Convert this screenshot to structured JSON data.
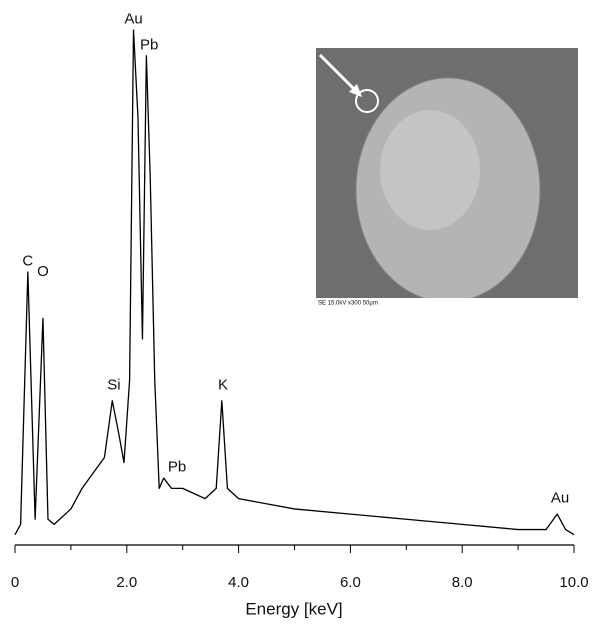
{
  "chart_data": {
    "type": "line",
    "x_label": "Energy [keV]",
    "x": [
      0,
      0.1,
      0.23,
      0.36,
      0.5,
      0.59,
      0.7,
      1.0,
      1.2,
      1.4,
      1.6,
      1.74,
      1.85,
      1.95,
      2.05,
      2.12,
      2.2,
      2.28,
      2.35,
      2.42,
      2.5,
      2.58,
      2.66,
      2.8,
      3.0,
      3.4,
      3.6,
      3.7,
      3.8,
      4.0,
      5.0,
      6.0,
      7.0,
      8.0,
      9.0,
      9.5,
      9.7,
      9.85,
      10.0
    ],
    "series": [
      {
        "color": "#000000",
        "values": [
          2,
          4,
          53,
          5,
          44,
          5,
          4,
          7,
          11,
          14,
          17,
          28,
          22,
          16,
          32,
          100,
          83,
          40,
          95,
          71,
          32,
          11,
          13,
          11,
          11,
          9,
          11,
          28,
          11,
          9,
          7,
          6,
          5,
          4,
          3,
          3,
          6,
          3,
          2
        ]
      }
    ],
    "xlim": [
      0,
      10
    ],
    "ylim": [
      0,
      100
    ],
    "xticks": [
      0,
      {
        "value": 2,
        "label": "2.0"
      },
      {
        "value": 4,
        "label": "4.0"
      },
      {
        "value": 6,
        "label": "6.0"
      },
      {
        "value": 8,
        "label": "8.0"
      },
      {
        "value": 10,
        "label": "10.0"
      }
    ],
    "xminorticks": [
      1,
      3,
      5,
      7,
      9
    ],
    "annotations": [
      {
        "text": "C",
        "x": 0.23,
        "y": 55
      },
      {
        "text": "O",
        "x": 0.5,
        "y": 53
      },
      {
        "text": "Au",
        "x": 2.12,
        "y": 102
      },
      {
        "text": "Pb",
        "x": 2.4,
        "y": 97
      },
      {
        "text": "Si",
        "x": 1.77,
        "y": 31
      },
      {
        "text": "K",
        "x": 3.72,
        "y": 31
      },
      {
        "text": "Pb",
        "x": 2.9,
        "y": 15
      },
      {
        "text": "Au",
        "x": 9.75,
        "y": 9
      }
    ],
    "inset": {
      "caption": "SE 15.0kV x300 50µm"
    }
  }
}
